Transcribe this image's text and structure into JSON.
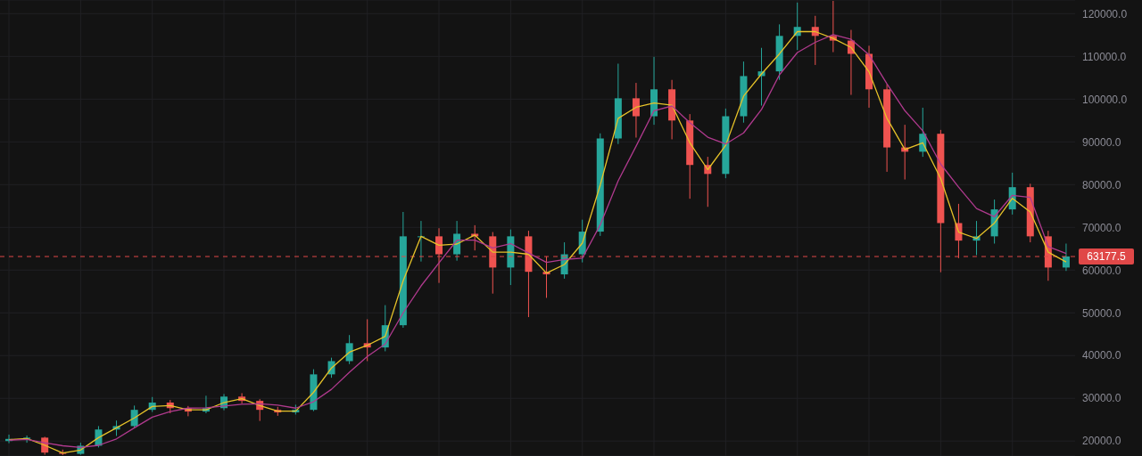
{
  "chart_data": {
    "type": "candlestick",
    "categories": [
      null,
      null,
      null,
      null,
      null,
      null,
      null,
      null,
      null,
      null,
      null,
      null,
      null,
      null,
      null,
      null,
      null,
      null,
      null,
      null,
      null,
      null,
      null,
      null,
      null,
      null,
      null,
      null,
      null,
      null,
      null,
      null,
      null,
      null,
      null,
      null,
      null,
      null,
      null,
      null,
      null,
      null,
      null,
      null,
      null,
      null,
      null,
      null,
      null,
      null,
      null,
      null,
      null,
      null,
      null,
      null,
      null,
      null,
      null,
      null
    ],
    "ohlc": [
      [
        20000,
        21500,
        19500,
        20500
      ],
      [
        20500,
        21300,
        19600,
        20800
      ],
      [
        20800,
        21000,
        16800,
        17300
      ],
      [
        17300,
        18000,
        16700,
        17000
      ],
      [
        17000,
        19600,
        16800,
        18900
      ],
      [
        18900,
        23500,
        18500,
        22700
      ],
      [
        22700,
        24800,
        21200,
        23500
      ],
      [
        23500,
        28300,
        23000,
        27300
      ],
      [
        27300,
        30300,
        26800,
        29000
      ],
      [
        29000,
        29600,
        26500,
        27700
      ],
      [
        27700,
        28200,
        25800,
        26900
      ],
      [
        26900,
        30600,
        26500,
        27700
      ],
      [
        27700,
        31000,
        27200,
        30400
      ],
      [
        30400,
        31200,
        28800,
        29400
      ],
      [
        29400,
        29800,
        24700,
        27300
      ],
      [
        27300,
        28000,
        25900,
        26700
      ],
      [
        26700,
        28500,
        26200,
        27300
      ],
      [
        27300,
        36800,
        27000,
        35600
      ],
      [
        35600,
        39500,
        34800,
        38700
      ],
      [
        38700,
        44800,
        38000,
        42900
      ],
      [
        42900,
        48500,
        38700,
        41900
      ],
      [
        41900,
        51800,
        41000,
        47100
      ],
      [
        47100,
        73600,
        46500,
        67900
      ],
      [
        67900,
        71500,
        62000,
        67900
      ],
      [
        67900,
        69800,
        57000,
        63700
      ],
      [
        63700,
        71500,
        62200,
        68500
      ],
      [
        68500,
        70500,
        64600,
        67900
      ],
      [
        67900,
        68900,
        54500,
        60600
      ],
      [
        60600,
        69500,
        56500,
        67900
      ],
      [
        67900,
        69200,
        49000,
        59600
      ],
      [
        59600,
        63200,
        53500,
        59000
      ],
      [
        59000,
        66500,
        58000,
        63700
      ],
      [
        63700,
        71800,
        61800,
        69000
      ],
      [
        69000,
        92000,
        68000,
        90800
      ],
      [
        90800,
        108300,
        89500,
        100200
      ],
      [
        100200,
        103800,
        91000,
        96000
      ],
      [
        96000,
        109900,
        94000,
        102300
      ],
      [
        102300,
        104500,
        90600,
        95000
      ],
      [
        95000,
        96500,
        76700,
        84600
      ],
      [
        84600,
        86500,
        74800,
        82500
      ],
      [
        82500,
        97800,
        81500,
        96000
      ],
      [
        96000,
        108800,
        94500,
        105400
      ],
      [
        105400,
        112000,
        98500,
        106500
      ],
      [
        106500,
        117500,
        104500,
        114800
      ],
      [
        114800,
        122600,
        111500,
        116900
      ],
      [
        116900,
        119500,
        108000,
        114800
      ],
      [
        114800,
        123000,
        111000,
        113700
      ],
      [
        113700,
        116200,
        101000,
        110600
      ],
      [
        110600,
        112500,
        98000,
        102300
      ],
      [
        102300,
        103500,
        83000,
        88700
      ],
      [
        88700,
        94000,
        81200,
        87700
      ],
      [
        87700,
        98000,
        86500,
        91900
      ],
      [
        91900,
        92800,
        59500,
        71000
      ],
      [
        71000,
        75500,
        62800,
        66900
      ],
      [
        66900,
        71500,
        63500,
        67900
      ],
      [
        67900,
        76500,
        66200,
        74200
      ],
      [
        74200,
        82800,
        73000,
        79400
      ],
      [
        79400,
        80200,
        66500,
        67900
      ],
      [
        67900,
        69200,
        57500,
        60600
      ],
      [
        60600,
        66200,
        59800,
        63200
      ]
    ],
    "colors": [
      "#26a69a",
      "#26a69a",
      "#ef5350",
      "#ef5350",
      "#26a69a",
      "#26a69a",
      "#26a69a",
      "#26a69a",
      "#26a69a",
      "#ef5350",
      "#ef5350",
      "#26a69a",
      "#26a69a",
      "#ef5350",
      "#ef5350",
      "#ef5350",
      "#26a69a",
      "#26a69a",
      "#26a69a",
      "#26a69a",
      "#ef5350",
      "#26a69a",
      "#26a69a",
      "#26a69a",
      "#ef5350",
      "#26a69a",
      "#ef5350",
      "#ef5350",
      "#26a69a",
      "#ef5350",
      "#ef5350",
      "#26a69a",
      "#26a69a",
      "#26a69a",
      "#26a69a",
      "#ef5350",
      "#26a69a",
      "#ef5350",
      "#ef5350",
      "#ef5350",
      "#26a69a",
      "#26a69a",
      "#26a69a",
      "#26a69a",
      "#26a69a",
      "#ef5350",
      "#ef5350",
      "#ef5350",
      "#ef5350",
      "#ef5350",
      "#ef5350",
      "#26a69a",
      "#ef5350",
      "#ef5350",
      "#26a69a",
      "#26a69a",
      "#26a69a",
      "#ef5350",
      "#ef5350",
      "#26a69a"
    ],
    "series": [
      {
        "type": "line",
        "color": "#e6c229",
        "values": [
          20300,
          20600,
          19000,
          17200,
          17900,
          20800,
          23100,
          25400,
          28100,
          28300,
          27300,
          27300,
          29000,
          29900,
          28300,
          27000,
          27000,
          31400,
          37100,
          40800,
          42400,
          44500,
          57500,
          67900,
          65800,
          66100,
          68200,
          64200,
          64200,
          63700,
          59300,
          61300,
          66300,
          79900,
          95500,
          98100,
          99100,
          98600,
          89800,
          83500,
          89200,
          100700,
          105900,
          110600,
          115800,
          115800,
          114200,
          112100,
          106400,
          95500,
          88200,
          89800,
          81400,
          68900,
          67400,
          71000,
          76800,
          73600,
          64200,
          61900
        ]
      },
      {
        "type": "line",
        "color": "#b03a8e",
        "values": [
          20200,
          20400,
          19600,
          18900,
          18500,
          19000,
          20500,
          23100,
          25600,
          26900,
          27700,
          27800,
          28200,
          28600,
          28700,
          28400,
          27700,
          29200,
          32100,
          36100,
          39800,
          42700,
          50000,
          56300,
          61700,
          67000,
          67000,
          65200,
          66200,
          64000,
          61800,
          62500,
          62800,
          70600,
          80900,
          89000,
          97300,
          98400,
          94500,
          91100,
          89500,
          92100,
          97600,
          105700,
          110900,
          113300,
          115100,
          114000,
          110400,
          103600,
          97300,
          92600,
          84800,
          79400,
          74400,
          72500,
          77500,
          77000,
          65500,
          63900
        ]
      }
    ],
    "ylim": [
      16500,
      123200
    ],
    "yticks": [
      {
        "value": 20000,
        "label": "20000.0"
      },
      {
        "value": 30000,
        "label": "30000.0"
      },
      {
        "value": 40000,
        "label": "40000.0"
      },
      {
        "value": 50000,
        "label": "50000.0"
      },
      {
        "value": 60000,
        "label": "60000.0"
      },
      {
        "value": 70000,
        "label": "70000.0"
      },
      {
        "value": 80000,
        "label": "80000.0"
      },
      {
        "value": 90000,
        "label": "90000.0"
      },
      {
        "value": 100000,
        "label": "100000.0"
      },
      {
        "value": 110000,
        "label": "110000.0"
      },
      {
        "value": 120000,
        "label": "120000.0"
      }
    ],
    "tick_labels": "y",
    "grid": true,
    "ref_lines": [
      {
        "axis": "y",
        "value": 63177.5,
        "label": "63177.5",
        "color": "#e04848",
        "line_style": "dashed"
      }
    ]
  }
}
